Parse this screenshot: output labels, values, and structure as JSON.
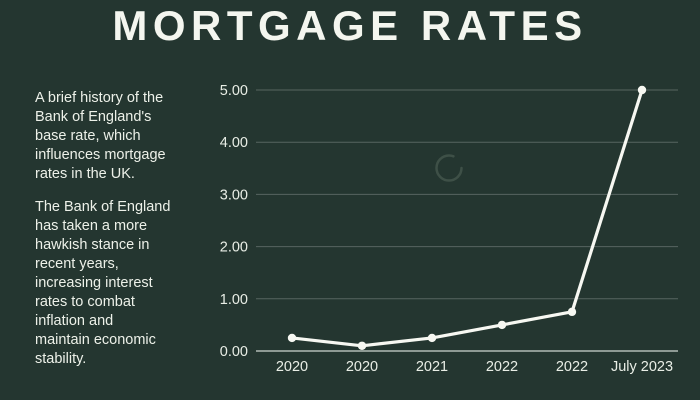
{
  "title": "MORTGAGE RATES",
  "intro": {
    "paragraph1": "A brief history of the\nBank of England's\nbase rate, which\ninfluences mortgage\nrates in the UK.",
    "paragraph2": "The Bank of England\nhas taken a more\nhawkish stance in\nrecent years,\nincreasing interest\nrates to combat\ninflation and\nmaintain economic\nstability."
  },
  "colors": {
    "background": "#243630",
    "text": "#edf1e9",
    "line": "#f7f8f2",
    "gridline": "rgba(240,245,238,0.25)",
    "axis_line": "rgba(240,245,238,0.7)",
    "spinner": "#3e5047"
  },
  "icons": {
    "spinner": "loading-spinner-icon"
  },
  "chart_data": {
    "type": "line",
    "categories": [
      "2020",
      "2020",
      "2021",
      "2022",
      "2022",
      "July 2023"
    ],
    "values": [
      0.25,
      0.1,
      0.25,
      0.5,
      0.75,
      5.0
    ],
    "yticks": [
      "0.00",
      "1.00",
      "2.00",
      "3.00",
      "4.00",
      "5.00"
    ],
    "ylim": [
      0,
      5
    ],
    "title": "",
    "xlabel": "",
    "ylabel": "",
    "grid": "horizontal",
    "legend": "none",
    "marker": "circle"
  }
}
